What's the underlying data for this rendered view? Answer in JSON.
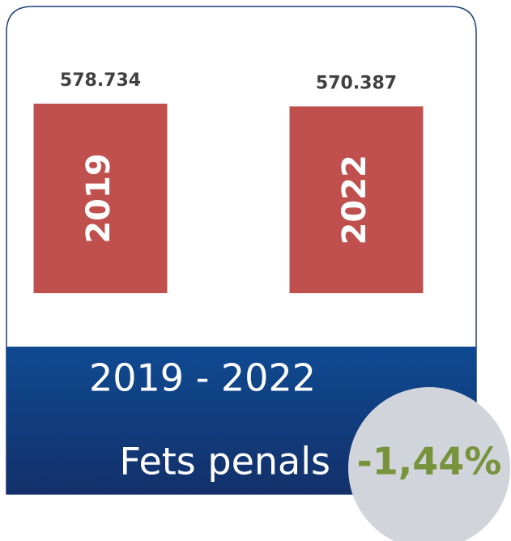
{
  "chart_data": {
    "type": "bar",
    "categories": [
      "2019",
      "2022"
    ],
    "values": [
      578734,
      570387
    ],
    "value_labels": [
      "578.734",
      "570.387"
    ],
    "color": "#c0504d",
    "ylim": [
      0,
      600000
    ],
    "subtitle": "2019 - 2022",
    "title": "Fets penals",
    "annotation": "-1,44%"
  }
}
